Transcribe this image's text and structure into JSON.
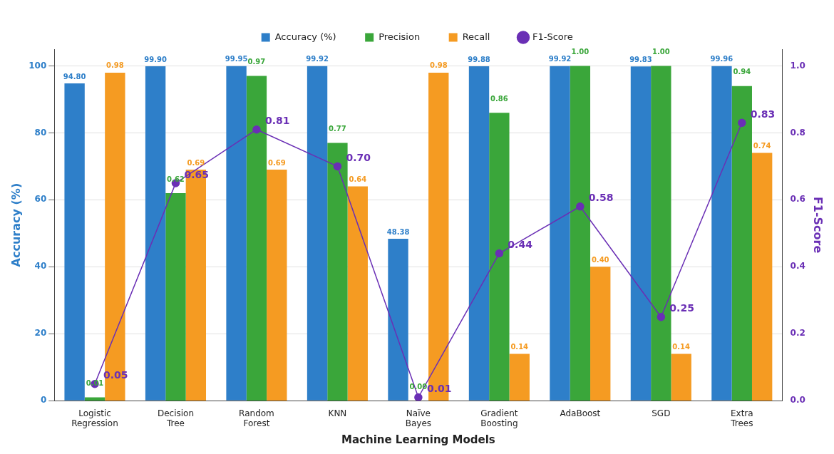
{
  "chart_data": {
    "type": "bar",
    "xlabel": "Machine Learning Models",
    "ylabel": "Accuracy (%)",
    "y2label": "F1-Score",
    "categories": [
      "Logistic Regression",
      "Decision Tree",
      "Random Forest",
      "KNN",
      "Naïve Bayes",
      "Gradient Boosting",
      "AdaBoost",
      "SGD",
      "Extra Trees"
    ],
    "series": [
      {
        "name": "Accuracy (%)",
        "color": "#2e7fc9",
        "values": [
          94.8,
          99.9,
          99.95,
          99.92,
          48.38,
          99.88,
          99.92,
          99.83,
          99.96
        ],
        "value_labels": [
          "94.80",
          "99.90",
          "99.95",
          "99.92",
          "48.38",
          "99.88",
          "99.92",
          "99.83",
          "99.96"
        ]
      },
      {
        "name": "Precision",
        "color": "#3aa63a",
        "axis": "y2",
        "values": [
          0.01,
          0.62,
          0.97,
          0.77,
          0.0,
          0.86,
          1.0,
          1.0,
          0.94
        ],
        "value_labels": [
          "0.01",
          "0.62",
          "0.97",
          "0.77",
          "0.00",
          "0.86",
          "1.00",
          "1.00",
          "0.94"
        ]
      },
      {
        "name": "Recall",
        "color": "#f59b22",
        "axis": "y2",
        "values": [
          0.98,
          0.69,
          0.69,
          0.64,
          0.98,
          0.14,
          0.4,
          0.14,
          0.74
        ],
        "value_labels": [
          "0.98",
          "0.69",
          "0.69",
          "0.64",
          "0.98",
          "0.14",
          "0.40",
          "0.14",
          "0.74"
        ]
      },
      {
        "name": "F1-Score",
        "type": "line",
        "color": "#6a2fb5",
        "axis": "y2",
        "marker": "circle",
        "values": [
          0.05,
          0.65,
          0.81,
          0.7,
          0.01,
          0.44,
          0.58,
          0.25,
          0.83
        ],
        "value_labels": [
          "0.05",
          "0.65",
          "0.81",
          "0.70",
          "0.01",
          "0.44",
          "0.58",
          "0.25",
          "0.83"
        ]
      }
    ],
    "ylim": [
      0,
      105
    ],
    "yticks": [
      0,
      20,
      40,
      60,
      80,
      100
    ],
    "y2lim": [
      0,
      1.05
    ],
    "y2ticks": [
      {
        "value": 0,
        "label": "0.0"
      },
      0.2,
      0.4,
      0.6,
      0.8,
      {
        "value": 1,
        "label": "1.0"
      }
    ],
    "grid": "y",
    "legend": "top"
  }
}
